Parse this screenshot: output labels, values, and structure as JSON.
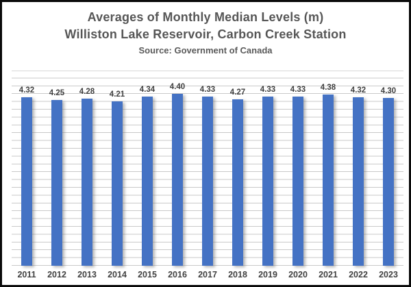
{
  "frame": {
    "border_color": "#0b0b0b",
    "background": "#ffffff"
  },
  "header": {
    "title_line1": "Averages of Monthly Median Levels (m)",
    "title_line2": "Williston Lake Reservoir, Carbon Creek Station",
    "subtitle": "Source: Government of Canada"
  },
  "chart_data": {
    "type": "bar",
    "title": "Averages of Monthly Median Levels (m)",
    "subtitle": "Williston Lake Reservoir, Carbon Creek Station",
    "source": "Source: Government of Canada",
    "categories": [
      "2011",
      "2012",
      "2013",
      "2014",
      "2015",
      "2016",
      "2017",
      "2018",
      "2019",
      "2020",
      "2021",
      "2022",
      "2023"
    ],
    "values": [
      4.32,
      4.25,
      4.28,
      4.21,
      4.34,
      4.4,
      4.33,
      4.27,
      4.33,
      4.33,
      4.38,
      4.32,
      4.3
    ],
    "value_labels": [
      "4.32",
      "4.25",
      "4.28",
      "4.21",
      "4.34",
      "4.40",
      "4.33",
      "4.27",
      "4.33",
      "4.33",
      "4.38",
      "4.32",
      "4.30"
    ],
    "xlabel": "",
    "ylabel": "",
    "ylim": [
      0,
      5
    ],
    "grid": true,
    "gridline_step": 0.2,
    "legend": "none",
    "bar_color": "#4472C4",
    "label_color": "#3f3f3f",
    "axis_label_color": "#404040",
    "title_color": "#565656",
    "data_labels": "outside-end"
  }
}
